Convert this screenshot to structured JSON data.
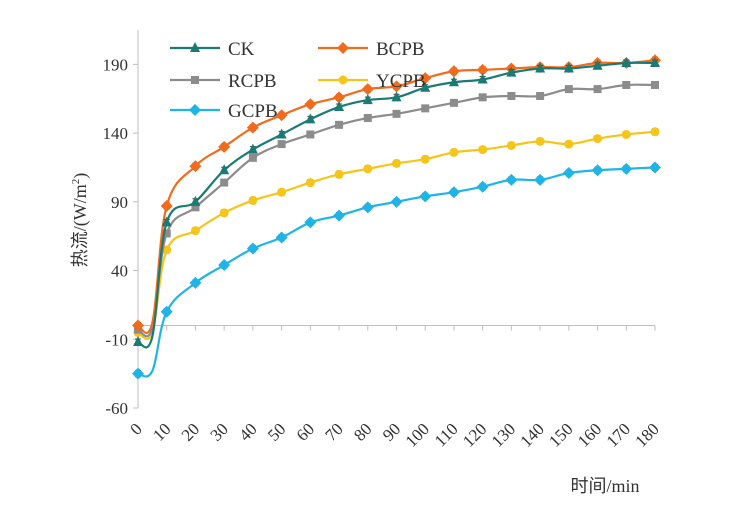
{
  "chart_data": {
    "type": "line",
    "title": "",
    "xlabel": "时间/min",
    "ylabel": "热流/(W/m²)",
    "ylabel_main": "热流/(W/m",
    "ylabel_sup": "2",
    "ylabel_close": ")",
    "xlim": [
      0,
      180
    ],
    "ylim": [
      -60,
      215
    ],
    "x_ticks": [
      "0",
      "10",
      "20",
      "30",
      "40",
      "50",
      "60",
      "70",
      "80",
      "90",
      "100",
      "110",
      "120",
      "130",
      "140",
      "150",
      "160",
      "170",
      "180"
    ],
    "y_ticks": [
      "-60",
      "-10",
      "40",
      "90",
      "140",
      "190"
    ],
    "grid": false,
    "legend_position": "top",
    "x": [
      0,
      5,
      10,
      20,
      30,
      40,
      50,
      60,
      70,
      80,
      90,
      100,
      110,
      120,
      130,
      140,
      150,
      160,
      170,
      180
    ],
    "series": [
      {
        "name": "CK",
        "color": "#1a7a74",
        "marker": "triangle",
        "values": [
          -12,
          -8,
          75,
          90,
          113,
          128,
          139,
          150,
          159,
          164,
          166,
          173,
          177,
          179,
          184,
          187,
          187,
          189,
          191,
          191
        ]
      },
      {
        "name": "BCPB",
        "color": "#f26b1d",
        "marker": "diamond",
        "values": [
          0,
          2,
          87,
          116,
          130,
          144,
          153,
          161,
          166,
          172,
          174,
          180,
          185,
          186,
          187,
          188,
          188,
          191,
          191,
          193
        ]
      },
      {
        "name": "RCPB",
        "color": "#8c8c8c",
        "marker": "square",
        "values": [
          -3,
          -2,
          67,
          86,
          104,
          122,
          132,
          139,
          146,
          151,
          154,
          158,
          162,
          166,
          167,
          167,
          172,
          172,
          175,
          175
        ]
      },
      {
        "name": "YCPB",
        "color": "#f5c51a",
        "marker": "circle",
        "values": [
          -5,
          -5,
          55,
          69,
          82,
          91,
          97,
          104,
          110,
          114,
          118,
          121,
          126,
          128,
          131,
          134,
          132,
          136,
          139,
          141
        ]
      },
      {
        "name": "GCPB",
        "color": "#1fb4e6",
        "marker": "diamond",
        "values": [
          -35,
          -33,
          10,
          31,
          44,
          56,
          64,
          75,
          80,
          86,
          90,
          94,
          97,
          101,
          106,
          106,
          111,
          113,
          114,
          115
        ]
      }
    ]
  }
}
